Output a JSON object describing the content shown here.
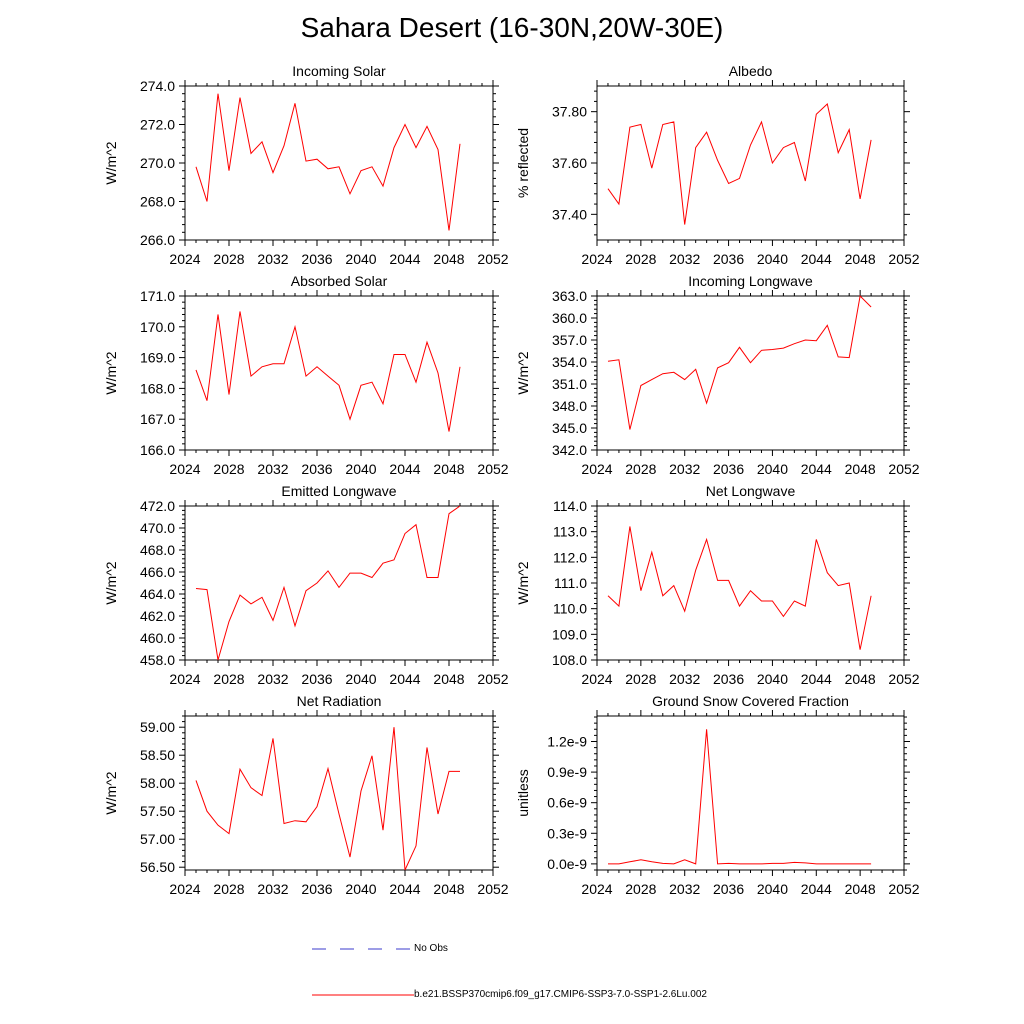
{
  "title": "Sahara Desert (16-30N,20W-30E)",
  "colors": {
    "series": "#ff0000",
    "obs": "#3b3bcc",
    "axis": "#000000"
  },
  "legend": {
    "obs_label": "No Obs",
    "model_label": "b.e21.BSSP370cmip6.f09_g17.CMIP6-SSP3-7.0-SSP1-2.6Lu.002"
  },
  "chart_data": [
    {
      "type": "line",
      "title": "Incoming Solar",
      "ylabel": "W/m^2",
      "xlim": [
        2024,
        2052
      ],
      "ylim": [
        266.0,
        274.0
      ],
      "xticks": [
        2024,
        2028,
        2032,
        2036,
        2040,
        2044,
        2048,
        2052
      ],
      "yticks": [
        266.0,
        268.0,
        270.0,
        272.0,
        274.0
      ],
      "ytick_decimals": 1,
      "x": [
        2025,
        2026,
        2027,
        2028,
        2029,
        2030,
        2031,
        2032,
        2033,
        2034,
        2035,
        2036,
        2037,
        2038,
        2039,
        2040,
        2041,
        2042,
        2043,
        2044,
        2045,
        2046,
        2047,
        2048,
        2049
      ],
      "values": [
        269.8,
        268.0,
        273.6,
        269.6,
        273.4,
        270.5,
        271.1,
        269.5,
        270.9,
        273.1,
        270.1,
        270.2,
        269.7,
        269.8,
        268.4,
        269.6,
        269.8,
        268.8,
        270.8,
        272.0,
        270.8,
        271.9,
        270.7,
        266.5,
        271.0
      ]
    },
    {
      "type": "line",
      "title": "Albedo",
      "ylabel": "% reflected",
      "xlim": [
        2024,
        2052
      ],
      "ylim": [
        37.3,
        37.9
      ],
      "xticks": [
        2024,
        2028,
        2032,
        2036,
        2040,
        2044,
        2048,
        2052
      ],
      "yticks": [
        37.4,
        37.6,
        37.8
      ],
      "ytick_decimals": 2,
      "x": [
        2025,
        2026,
        2027,
        2028,
        2029,
        2030,
        2031,
        2032,
        2033,
        2034,
        2035,
        2036,
        2037,
        2038,
        2039,
        2040,
        2041,
        2042,
        2043,
        2044,
        2045,
        2046,
        2047,
        2048,
        2049
      ],
      "values": [
        37.5,
        37.44,
        37.74,
        37.75,
        37.58,
        37.75,
        37.76,
        37.36,
        37.66,
        37.72,
        37.61,
        37.52,
        37.54,
        37.67,
        37.76,
        37.6,
        37.66,
        37.68,
        37.53,
        37.79,
        37.83,
        37.64,
        37.73,
        37.46,
        37.69
      ]
    },
    {
      "type": "line",
      "title": "Absorbed Solar",
      "ylabel": "W/m^2",
      "xlim": [
        2024,
        2052
      ],
      "ylim": [
        166.0,
        171.0
      ],
      "xticks": [
        2024,
        2028,
        2032,
        2036,
        2040,
        2044,
        2048,
        2052
      ],
      "yticks": [
        166.0,
        167.0,
        168.0,
        169.0,
        170.0,
        171.0
      ],
      "ytick_decimals": 1,
      "x": [
        2025,
        2026,
        2027,
        2028,
        2029,
        2030,
        2031,
        2032,
        2033,
        2034,
        2035,
        2036,
        2037,
        2038,
        2039,
        2040,
        2041,
        2042,
        2043,
        2044,
        2045,
        2046,
        2047,
        2048,
        2049
      ],
      "values": [
        168.6,
        167.6,
        170.4,
        167.8,
        170.5,
        168.4,
        168.7,
        168.8,
        168.8,
        170.0,
        168.4,
        168.7,
        168.4,
        168.1,
        167.0,
        168.1,
        168.2,
        167.5,
        169.1,
        169.1,
        168.2,
        169.5,
        168.5,
        166.6,
        168.7
      ]
    },
    {
      "type": "line",
      "title": "Incoming Longwave",
      "ylabel": "W/m^2",
      "xlim": [
        2024,
        2052
      ],
      "ylim": [
        342.0,
        363.0
      ],
      "xticks": [
        2024,
        2028,
        2032,
        2036,
        2040,
        2044,
        2048,
        2052
      ],
      "yticks": [
        342.0,
        345.0,
        348.0,
        351.0,
        354.0,
        357.0,
        360.0,
        363.0
      ],
      "ytick_decimals": 1,
      "x": [
        2025,
        2026,
        2027,
        2028,
        2029,
        2030,
        2031,
        2032,
        2033,
        2034,
        2035,
        2036,
        2037,
        2038,
        2039,
        2040,
        2041,
        2042,
        2043,
        2044,
        2045,
        2046,
        2047,
        2048,
        2049
      ],
      "values": [
        354.1,
        354.3,
        344.8,
        350.8,
        351.6,
        352.4,
        352.6,
        351.6,
        353.0,
        348.4,
        353.2,
        353.9,
        356.0,
        353.9,
        355.6,
        355.7,
        355.9,
        356.5,
        357.0,
        356.9,
        359.0,
        354.7,
        354.6,
        363.0,
        361.5
      ]
    },
    {
      "type": "line",
      "title": "Emitted Longwave",
      "ylabel": "W/m^2",
      "xlim": [
        2024,
        2052
      ],
      "ylim": [
        458.0,
        472.0
      ],
      "xticks": [
        2024,
        2028,
        2032,
        2036,
        2040,
        2044,
        2048,
        2052
      ],
      "yticks": [
        458.0,
        460.0,
        462.0,
        464.0,
        466.0,
        468.0,
        470.0,
        472.0
      ],
      "ytick_decimals": 1,
      "x": [
        2025,
        2026,
        2027,
        2028,
        2029,
        2030,
        2031,
        2032,
        2033,
        2034,
        2035,
        2036,
        2037,
        2038,
        2039,
        2040,
        2041,
        2042,
        2043,
        2044,
        2045,
        2046,
        2047,
        2048,
        2049
      ],
      "values": [
        464.5,
        464.4,
        458.0,
        461.5,
        463.9,
        463.1,
        463.7,
        461.6,
        464.6,
        461.1,
        464.3,
        465.0,
        466.1,
        464.6,
        465.9,
        465.9,
        465.5,
        466.8,
        467.1,
        469.5,
        470.3,
        465.5,
        465.5,
        471.3,
        472.0
      ]
    },
    {
      "type": "line",
      "title": "Net Longwave",
      "ylabel": "W/m^2",
      "xlim": [
        2024,
        2052
      ],
      "ylim": [
        108.0,
        114.0
      ],
      "xticks": [
        2024,
        2028,
        2032,
        2036,
        2040,
        2044,
        2048,
        2052
      ],
      "yticks": [
        108.0,
        109.0,
        110.0,
        111.0,
        112.0,
        113.0,
        114.0
      ],
      "ytick_decimals": 1,
      "x": [
        2025,
        2026,
        2027,
        2028,
        2029,
        2030,
        2031,
        2032,
        2033,
        2034,
        2035,
        2036,
        2037,
        2038,
        2039,
        2040,
        2041,
        2042,
        2043,
        2044,
        2045,
        2046,
        2047,
        2048,
        2049
      ],
      "values": [
        110.5,
        110.1,
        113.2,
        110.7,
        112.2,
        110.5,
        110.9,
        109.9,
        111.5,
        112.7,
        111.1,
        111.1,
        110.1,
        110.7,
        110.3,
        110.3,
        109.7,
        110.3,
        110.1,
        112.7,
        111.4,
        110.9,
        111.0,
        108.4,
        110.5
      ]
    },
    {
      "type": "line",
      "title": "Net Radiation",
      "ylabel": "W/m^2",
      "xlim": [
        2024,
        2052
      ],
      "ylim": [
        56.45,
        59.2
      ],
      "xticks": [
        2024,
        2028,
        2032,
        2036,
        2040,
        2044,
        2048,
        2052
      ],
      "yticks": [
        56.5,
        57.0,
        57.5,
        58.0,
        58.5,
        59.0
      ],
      "ytick_decimals": 2,
      "x": [
        2025,
        2026,
        2027,
        2028,
        2029,
        2030,
        2031,
        2032,
        2033,
        2034,
        2035,
        2036,
        2037,
        2038,
        2039,
        2040,
        2041,
        2042,
        2043,
        2044,
        2045,
        2046,
        2047,
        2048,
        2049
      ],
      "values": [
        58.05,
        57.5,
        57.25,
        57.1,
        58.25,
        57.92,
        57.78,
        58.8,
        57.28,
        57.33,
        57.31,
        57.58,
        58.26,
        57.45,
        56.68,
        57.86,
        58.49,
        57.16,
        59.0,
        56.45,
        56.88,
        58.64,
        57.45,
        58.21,
        58.21
      ]
    },
    {
      "type": "line",
      "title": "Ground Snow Covered Fraction",
      "ylabel": "unitless",
      "xlim": [
        2024,
        2052
      ],
      "ylim": [
        -6e-11,
        1.45e-09
      ],
      "xticks": [
        2024,
        2028,
        2032,
        2036,
        2040,
        2044,
        2048,
        2052
      ],
      "yticks": [
        0,
        3e-10,
        6e-10,
        9e-10,
        1.2e-09
      ],
      "ytick_labels": [
        "0.0e-9",
        "0.3e-9",
        "0.6e-9",
        "0.9e-9",
        "1.2e-9"
      ],
      "x": [
        2025,
        2026,
        2027,
        2028,
        2029,
        2030,
        2031,
        2032,
        2033,
        2034,
        2035,
        2036,
        2037,
        2038,
        2039,
        2040,
        2041,
        2042,
        2043,
        2044,
        2045,
        2046,
        2047,
        2048,
        2049
      ],
      "values": [
        0,
        0,
        2e-11,
        4e-11,
        2e-11,
        5e-12,
        0,
        4e-11,
        0,
        1.32e-09,
        0,
        5e-12,
        0,
        0,
        0,
        5e-12,
        5e-12,
        1.5e-11,
        1e-11,
        0,
        0,
        0,
        0,
        0,
        0
      ]
    }
  ]
}
